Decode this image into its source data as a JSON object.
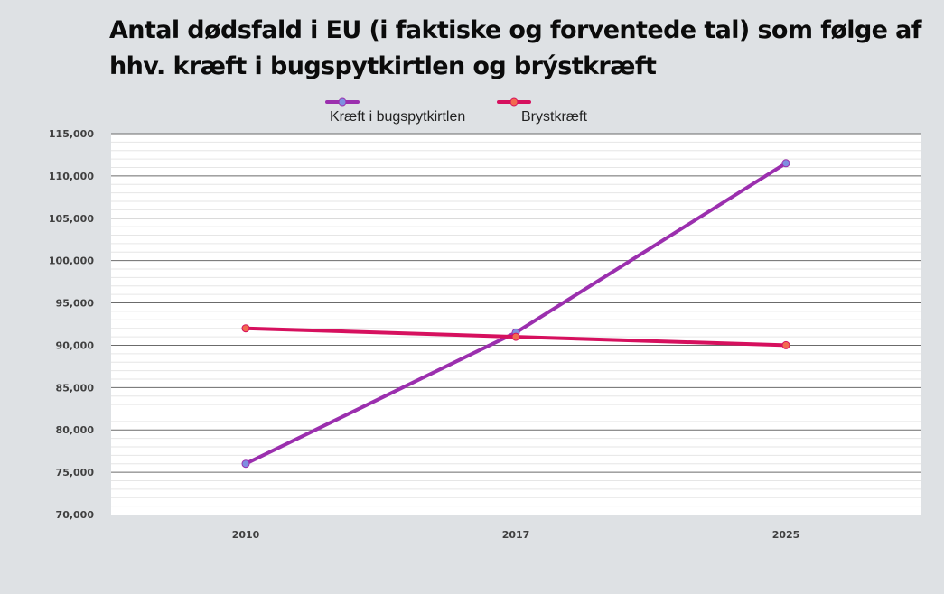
{
  "chart_data": {
    "type": "line",
    "title": "Antal dødsfald i EU (i faktiske og forventede tal) som følge af hhv. kræft i bugspytkirtlen og brýstkræft",
    "xlabel": "",
    "ylabel": "",
    "categories": [
      "2010",
      "2017",
      "2025"
    ],
    "ylim": [
      70000,
      115000
    ],
    "yticks": [
      70000,
      75000,
      80000,
      85000,
      90000,
      95000,
      100000,
      105000,
      110000,
      115000
    ],
    "ytick_labels": [
      "70,000",
      "75,000",
      "80,000",
      "85,000",
      "90,000",
      "95,000",
      "100,000",
      "105,000",
      "110,000",
      "115,000"
    ],
    "grid": true,
    "legend_position": "top-center",
    "series": [
      {
        "name": "Kræft i bugspytkirtlen",
        "values": [
          76000,
          91500,
          111500
        ],
        "color": "#9b2fae",
        "marker_color": "#7f8fe0"
      },
      {
        "name": "Brystkræft",
        "values": [
          92000,
          91000,
          90000
        ],
        "color": "#d6105e",
        "marker_color": "#f26a4f"
      }
    ]
  }
}
